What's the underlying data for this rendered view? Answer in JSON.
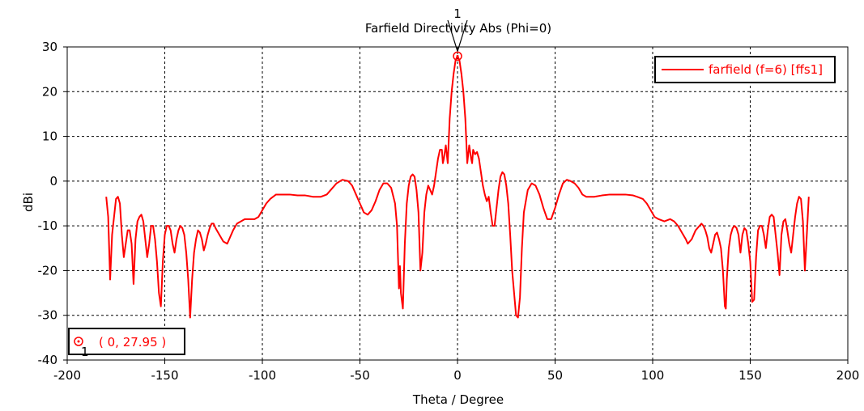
{
  "chart_data": {
    "type": "line",
    "title": "Farfield Directivity Abs (Phi=0)",
    "xlabel": "Theta / Degree",
    "ylabel": "dBi",
    "xlim": [
      -200,
      200
    ],
    "ylim": [
      -40,
      30
    ],
    "xticks": [
      -200,
      -150,
      -100,
      -50,
      0,
      50,
      100,
      150,
      200
    ],
    "yticks": [
      30,
      20,
      10,
      0,
      -10,
      -20,
      -30,
      -40
    ],
    "grid": true,
    "legend_position": "top-right",
    "series": [
      {
        "name": "farfield (f=6) [ffs1]",
        "color": "#ff0000",
        "points": [
          [
            -180,
            -3.5
          ],
          [
            -179,
            -8
          ],
          [
            -178,
            -22
          ],
          [
            -177,
            -12
          ],
          [
            -175,
            -4
          ],
          [
            -174,
            -3.5
          ],
          [
            -173,
            -5
          ],
          [
            -172,
            -12
          ],
          [
            -171,
            -17
          ],
          [
            -170,
            -14
          ],
          [
            -169,
            -11
          ],
          [
            -168,
            -11
          ],
          [
            -167,
            -14
          ],
          [
            -166,
            -23
          ],
          [
            -165,
            -13
          ],
          [
            -164,
            -9
          ],
          [
            -163,
            -8
          ],
          [
            -162,
            -7.5
          ],
          [
            -161,
            -9
          ],
          [
            -160,
            -13
          ],
          [
            -159,
            -17
          ],
          [
            -158,
            -14
          ],
          [
            -157,
            -10
          ],
          [
            -156,
            -10
          ],
          [
            -155,
            -13
          ],
          [
            -154,
            -18
          ],
          [
            -153,
            -25
          ],
          [
            -152,
            -28
          ],
          [
            -151,
            -18
          ],
          [
            -150,
            -12
          ],
          [
            -149,
            -10
          ],
          [
            -148,
            -10
          ],
          [
            -147,
            -11
          ],
          [
            -146,
            -14
          ],
          [
            -145,
            -16
          ],
          [
            -144,
            -13
          ],
          [
            -143,
            -11
          ],
          [
            -142,
            -10
          ],
          [
            -141,
            -10.5
          ],
          [
            -140,
            -12
          ],
          [
            -139,
            -16
          ],
          [
            -138,
            -22
          ],
          [
            -137,
            -30.5
          ],
          [
            -136,
            -22
          ],
          [
            -135,
            -16
          ],
          [
            -134,
            -13
          ],
          [
            -133,
            -11
          ],
          [
            -132,
            -11.5
          ],
          [
            -131,
            -13
          ],
          [
            -130,
            -15.5
          ],
          [
            -129,
            -14
          ],
          [
            -128,
            -12
          ],
          [
            -127,
            -10.5
          ],
          [
            -126,
            -9.5
          ],
          [
            -125,
            -9.5
          ],
          [
            -124,
            -10.5
          ],
          [
            -122,
            -12
          ],
          [
            -120,
            -13.5
          ],
          [
            -118,
            -14
          ],
          [
            -117,
            -13
          ],
          [
            -115,
            -11
          ],
          [
            -113,
            -9.5
          ],
          [
            -111,
            -9
          ],
          [
            -109,
            -8.5
          ],
          [
            -107,
            -8.5
          ],
          [
            -104,
            -8.5
          ],
          [
            -102,
            -8
          ],
          [
            -100,
            -6.5
          ],
          [
            -98,
            -5
          ],
          [
            -96,
            -4
          ],
          [
            -93,
            -3
          ],
          [
            -90,
            -3
          ],
          [
            -86,
            -3
          ],
          [
            -82,
            -3.2
          ],
          [
            -78,
            -3.2
          ],
          [
            -74,
            -3.5
          ],
          [
            -70,
            -3.5
          ],
          [
            -67,
            -3
          ],
          [
            -65,
            -2
          ],
          [
            -62,
            -0.5
          ],
          [
            -59,
            0.3
          ],
          [
            -56,
            0
          ],
          [
            -54,
            -1
          ],
          [
            -52,
            -3
          ],
          [
            -50,
            -5
          ],
          [
            -48,
            -7
          ],
          [
            -46,
            -7.5
          ],
          [
            -44,
            -6.5
          ],
          [
            -42,
            -4.5
          ],
          [
            -40,
            -2
          ],
          [
            -38,
            -0.5
          ],
          [
            -36,
            -0.5
          ],
          [
            -34,
            -1.5
          ],
          [
            -32,
            -5
          ],
          [
            -31,
            -10
          ],
          [
            -30,
            -24
          ],
          [
            -29.5,
            -19
          ],
          [
            -29,
            -25
          ],
          [
            -28,
            -28.5
          ],
          [
            -27,
            -14
          ],
          [
            -26,
            -5
          ],
          [
            -25,
            -1
          ],
          [
            -24,
            1
          ],
          [
            -23,
            1.5
          ],
          [
            -22,
            1
          ],
          [
            -21,
            -2
          ],
          [
            -20,
            -7
          ],
          [
            -19,
            -20
          ],
          [
            -18,
            -16
          ],
          [
            -17,
            -7
          ],
          [
            -16,
            -3
          ],
          [
            -15,
            -1
          ],
          [
            -14,
            -2
          ],
          [
            -13,
            -3
          ],
          [
            -12,
            -1
          ],
          [
            -11,
            2
          ],
          [
            -10,
            5
          ],
          [
            -9,
            7
          ],
          [
            -8,
            7
          ],
          [
            -7.5,
            4
          ],
          [
            -7,
            5
          ],
          [
            -6,
            8
          ],
          [
            -5,
            4
          ],
          [
            -4,
            14
          ],
          [
            -3,
            20
          ],
          [
            -2,
            24
          ],
          [
            -1,
            27
          ],
          [
            0,
            27.95
          ],
          [
            1,
            27
          ],
          [
            2,
            24
          ],
          [
            3,
            20
          ],
          [
            4,
            14
          ],
          [
            5,
            4
          ],
          [
            6,
            8
          ],
          [
            7,
            5
          ],
          [
            7.5,
            4
          ],
          [
            8,
            7
          ],
          [
            9,
            6
          ],
          [
            10,
            6.5
          ],
          [
            11,
            5
          ],
          [
            12,
            2
          ],
          [
            13,
            -1
          ],
          [
            14,
            -3
          ],
          [
            15,
            -4.5
          ],
          [
            16,
            -3.5
          ],
          [
            17,
            -7
          ],
          [
            18,
            -10
          ],
          [
            19,
            -10
          ],
          [
            20,
            -6
          ],
          [
            21,
            -2
          ],
          [
            22,
            1
          ],
          [
            23,
            2
          ],
          [
            24,
            1.5
          ],
          [
            25,
            -1
          ],
          [
            26,
            -5
          ],
          [
            27,
            -12
          ],
          [
            28,
            -20
          ],
          [
            29,
            -25
          ],
          [
            30,
            -30
          ],
          [
            31,
            -30.5
          ],
          [
            32,
            -26
          ],
          [
            33,
            -15
          ],
          [
            34,
            -7
          ],
          [
            36,
            -2
          ],
          [
            38,
            -0.5
          ],
          [
            40,
            -1
          ],
          [
            42,
            -3
          ],
          [
            44,
            -6
          ],
          [
            46,
            -8.5
          ],
          [
            48,
            -8.5
          ],
          [
            50,
            -6
          ],
          [
            52,
            -3
          ],
          [
            54,
            -0.5
          ],
          [
            56,
            0.3
          ],
          [
            58,
            0
          ],
          [
            60,
            -0.5
          ],
          [
            62,
            -1.5
          ],
          [
            64,
            -3
          ],
          [
            66,
            -3.5
          ],
          [
            70,
            -3.5
          ],
          [
            74,
            -3.2
          ],
          [
            78,
            -3
          ],
          [
            82,
            -3
          ],
          [
            86,
            -3
          ],
          [
            90,
            -3.2
          ],
          [
            92,
            -3.5
          ],
          [
            95,
            -4
          ],
          [
            97,
            -5
          ],
          [
            99,
            -6.5
          ],
          [
            101,
            -8
          ],
          [
            103,
            -8.5
          ],
          [
            106,
            -9
          ],
          [
            109,
            -8.5
          ],
          [
            111,
            -9
          ],
          [
            113,
            -10
          ],
          [
            115,
            -11.5
          ],
          [
            117,
            -13
          ],
          [
            118,
            -14
          ],
          [
            120,
            -13
          ],
          [
            122,
            -11
          ],
          [
            124,
            -10
          ],
          [
            125,
            -9.5
          ],
          [
            126,
            -10
          ],
          [
            127,
            -11
          ],
          [
            128,
            -12.5
          ],
          [
            129,
            -15
          ],
          [
            130,
            -16
          ],
          [
            131,
            -14
          ],
          [
            132,
            -12
          ],
          [
            133,
            -11.5
          ],
          [
            134,
            -13
          ],
          [
            135,
            -15
          ],
          [
            136,
            -20
          ],
          [
            137,
            -28
          ],
          [
            137.5,
            -28.5
          ],
          [
            138,
            -22
          ],
          [
            139,
            -15
          ],
          [
            140,
            -12
          ],
          [
            141,
            -10.5
          ],
          [
            142,
            -10
          ],
          [
            143,
            -10.5
          ],
          [
            144,
            -12
          ],
          [
            145,
            -16
          ],
          [
            146,
            -12
          ],
          [
            147,
            -10.5
          ],
          [
            148,
            -11
          ],
          [
            149,
            -14
          ],
          [
            150,
            -18
          ],
          [
            151,
            -27
          ],
          [
            152,
            -26.5
          ],
          [
            153,
            -17
          ],
          [
            154,
            -11
          ],
          [
            155,
            -10
          ],
          [
            156,
            -10
          ],
          [
            157,
            -12
          ],
          [
            158,
            -15
          ],
          [
            159,
            -11
          ],
          [
            160,
            -8
          ],
          [
            161,
            -7.5
          ],
          [
            162,
            -8
          ],
          [
            163,
            -12
          ],
          [
            164,
            -16
          ],
          [
            165,
            -21
          ],
          [
            166,
            -12
          ],
          [
            167,
            -9
          ],
          [
            168,
            -8.5
          ],
          [
            169,
            -11
          ],
          [
            170,
            -14
          ],
          [
            171,
            -16
          ],
          [
            172,
            -12
          ],
          [
            173,
            -8
          ],
          [
            174,
            -5
          ],
          [
            175,
            -3.5
          ],
          [
            176,
            -4
          ],
          [
            177,
            -9
          ],
          [
            178,
            -20
          ],
          [
            179,
            -12
          ],
          [
            180,
            -3.5
          ]
        ]
      }
    ],
    "marker": {
      "id": "1",
      "x": 0,
      "y": 27.95,
      "label": "( 0, 27.95 )"
    }
  }
}
